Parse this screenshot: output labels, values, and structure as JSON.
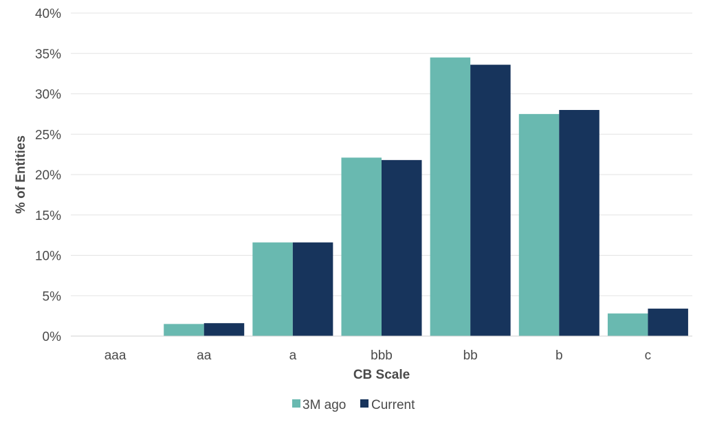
{
  "chart_data": {
    "type": "bar",
    "xlabel": "CB Scale",
    "ylabel": "% of Entities",
    "categories": [
      "aaa",
      "aa",
      "a",
      "bbb",
      "bb",
      "b",
      "c"
    ],
    "series": [
      {
        "name": "3M ago",
        "color": "#69b9b0",
        "values": [
          0,
          1.5,
          11.6,
          22.1,
          34.5,
          27.5,
          2.8
        ]
      },
      {
        "name": "Current",
        "color": "#17345c",
        "values": [
          0,
          1.6,
          11.6,
          21.8,
          33.6,
          28.0,
          3.4
        ]
      }
    ],
    "ylim": [
      0,
      40
    ],
    "yticks": [
      "0%",
      "5%",
      "10%",
      "15%",
      "20%",
      "25%",
      "30%",
      "35%",
      "40%"
    ],
    "grid": true,
    "legend": "bottom"
  }
}
